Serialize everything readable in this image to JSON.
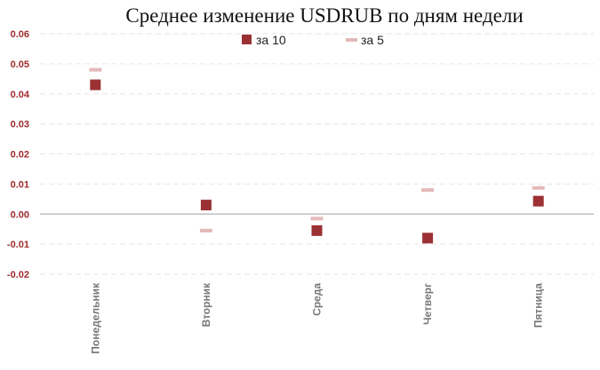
{
  "chart_data": {
    "type": "scatter",
    "title": "Среднее изменение USDRUB по дням недели",
    "categories": [
      "Понедельник",
      "Вторник",
      "Среда",
      "Четверг",
      "Пятница"
    ],
    "series": [
      {
        "name": "за 10",
        "values": [
          0.043,
          0.003,
          -0.0055,
          -0.008,
          0.0043
        ],
        "color": "#9b3133",
        "marker": "square"
      },
      {
        "name": "за 5",
        "values": [
          0.048,
          -0.0055,
          -0.0015,
          0.008,
          0.0087
        ],
        "color": "#e4b9b9",
        "marker": "dash"
      }
    ],
    "ylim": [
      -0.02,
      0.06
    ],
    "yticks": [
      0.06,
      0.05,
      0.04,
      0.03,
      0.02,
      0.01,
      0.0,
      -0.01,
      -0.02
    ],
    "ytick_labels": [
      "0.06",
      "0.05",
      "0.04",
      "0.03",
      "0.02",
      "0.01",
      "0.00",
      "-0.01",
      "-0.02"
    ],
    "grid": true,
    "legend_position": "top-center",
    "axis_color": "#bfbfbf",
    "grid_color": "#e6e6e6",
    "tick_label_color": "#a02b2e"
  }
}
